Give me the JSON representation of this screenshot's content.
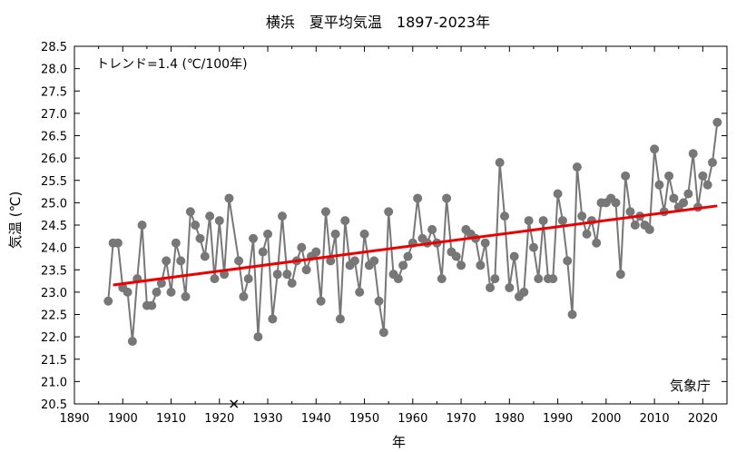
{
  "chart_data": {
    "type": "line",
    "title": "横浜　夏平均気温　1897-2023年",
    "xlabel": "年",
    "ylabel": "気温 (℃)",
    "annotation": "トレンド=1.4 (℃/100年)",
    "credit": "気象庁",
    "xlim": [
      1890,
      2025
    ],
    "ylim": [
      20.5,
      28.5
    ],
    "xticks": [
      1890,
      1900,
      1910,
      1920,
      1930,
      1940,
      1950,
      1960,
      1970,
      1980,
      1990,
      2000,
      2010,
      2020
    ],
    "yticks": [
      "20.5",
      "21.0",
      "21.5",
      "22.0",
      "22.5",
      "23.0",
      "23.5",
      "24.0",
      "24.5",
      "25.0",
      "25.5",
      "26.0",
      "26.5",
      "27.0",
      "27.5",
      "28.0",
      "28.5"
    ],
    "grid": false,
    "series": [
      {
        "color": "#777777",
        "x": [
          1897,
          1898,
          1899,
          1900,
          1901,
          1902,
          1903,
          1904,
          1905,
          1906,
          1907,
          1908,
          1909,
          1910,
          1911,
          1912,
          1913,
          1914,
          1915,
          1916,
          1917,
          1918,
          1919,
          1920,
          1921,
          1922,
          1924,
          1925,
          1926,
          1927,
          1928,
          1929,
          1930,
          1931,
          1932,
          1933,
          1934,
          1935,
          1936,
          1937,
          1938,
          1939,
          1940,
          1941,
          1942,
          1943,
          1944,
          1945,
          1946,
          1947,
          1948,
          1949,
          1950,
          1951,
          1952,
          1953,
          1954,
          1955,
          1956,
          1957,
          1958,
          1959,
          1960,
          1961,
          1962,
          1963,
          1964,
          1965,
          1966,
          1967,
          1968,
          1969,
          1970,
          1971,
          1972,
          1973,
          1974,
          1975,
          1976,
          1977,
          1978,
          1979,
          1980,
          1981,
          1982,
          1983,
          1984,
          1985,
          1986,
          1987,
          1988,
          1989,
          1990,
          1991,
          1992,
          1993,
          1994,
          1995,
          1996,
          1997,
          1998,
          1999,
          2000,
          2001,
          2002,
          2003,
          2004,
          2005,
          2006,
          2007,
          2008,
          2009,
          2010,
          2011,
          2012,
          2013,
          2014,
          2015,
          2016,
          2017,
          2018,
          2019,
          2020,
          2021,
          2022,
          2023
        ],
        "values": [
          22.8,
          24.1,
          24.1,
          23.1,
          23.0,
          21.9,
          23.3,
          24.5,
          22.7,
          22.7,
          23.0,
          23.2,
          23.7,
          23.0,
          24.1,
          23.7,
          22.9,
          24.8,
          24.5,
          24.2,
          23.8,
          24.7,
          23.3,
          24.6,
          23.4,
          25.1,
          23.7,
          22.9,
          23.3,
          24.2,
          22.0,
          23.9,
          24.3,
          22.4,
          23.4,
          24.7,
          23.4,
          23.2,
          23.7,
          24.0,
          23.5,
          23.8,
          23.9,
          22.8,
          24.8,
          23.7,
          24.3,
          22.4,
          24.6,
          23.6,
          23.7,
          23.0,
          24.3,
          23.6,
          23.7,
          22.8,
          22.1,
          24.8,
          23.4,
          23.3,
          23.6,
          23.8,
          24.1,
          25.1,
          24.2,
          24.1,
          24.4,
          24.1,
          23.3,
          25.1,
          23.9,
          23.8,
          23.6,
          24.4,
          24.3,
          24.2,
          23.6,
          24.1,
          23.1,
          23.3,
          25.9,
          24.7,
          23.1,
          23.8,
          22.9,
          23.0,
          24.6,
          24.0,
          23.3,
          24.6,
          23.3,
          23.3,
          25.2,
          24.6,
          23.7,
          22.5,
          25.8,
          24.7,
          24.3,
          24.6,
          24.1,
          25.0,
          25.0,
          25.1,
          25.0,
          23.4,
          25.6,
          24.8,
          24.5,
          24.7,
          24.5,
          24.4,
          26.2,
          25.4,
          24.8,
          25.6,
          25.1,
          24.9,
          25.0,
          25.2,
          26.1,
          24.9,
          25.6,
          25.4,
          25.9,
          26.8
        ]
      },
      {
        "color": "#ee0000",
        "x": [
          1898,
          2023
        ],
        "values": [
          23.16,
          24.93
        ]
      }
    ],
    "missing_markers": {
      "x": [
        1923
      ],
      "values": [
        20.5
      ]
    }
  }
}
